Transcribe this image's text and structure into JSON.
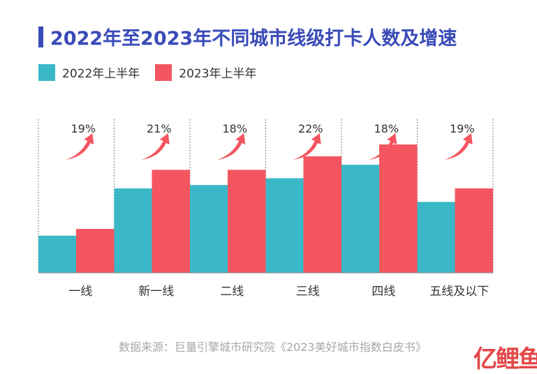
{
  "chart_data": {
    "type": "bar",
    "title": "2022年至2023年不同城市线级打卡人数及增速",
    "categories": [
      "一线",
      "新一线",
      "二线",
      "三线",
      "四线",
      "五线及以下"
    ],
    "series": [
      {
        "name": "2022年上半年",
        "color": "#3ab8c8",
        "values": [
          22,
          50,
          52,
          56,
          64,
          42
        ]
      },
      {
        "name": "2023年上半年",
        "color": "#f4555f",
        "values": [
          26,
          61,
          61,
          69,
          76,
          50
        ]
      }
    ],
    "growth_labels": [
      "19%",
      "21%",
      "18%",
      "22%",
      "18%",
      "19%"
    ],
    "ylim": [
      0,
      100
    ],
    "grid": "dotted-vertical",
    "legend_position": "top-left"
  },
  "source": "数据来源：巨量引擎城市研究院《2023美好城市指数白皮书》",
  "watermark": {
    "part1": "亿",
    "part2": "鲤鱼"
  },
  "colors": {
    "title": "#3a4bb8",
    "arrow": "#f4555f"
  }
}
